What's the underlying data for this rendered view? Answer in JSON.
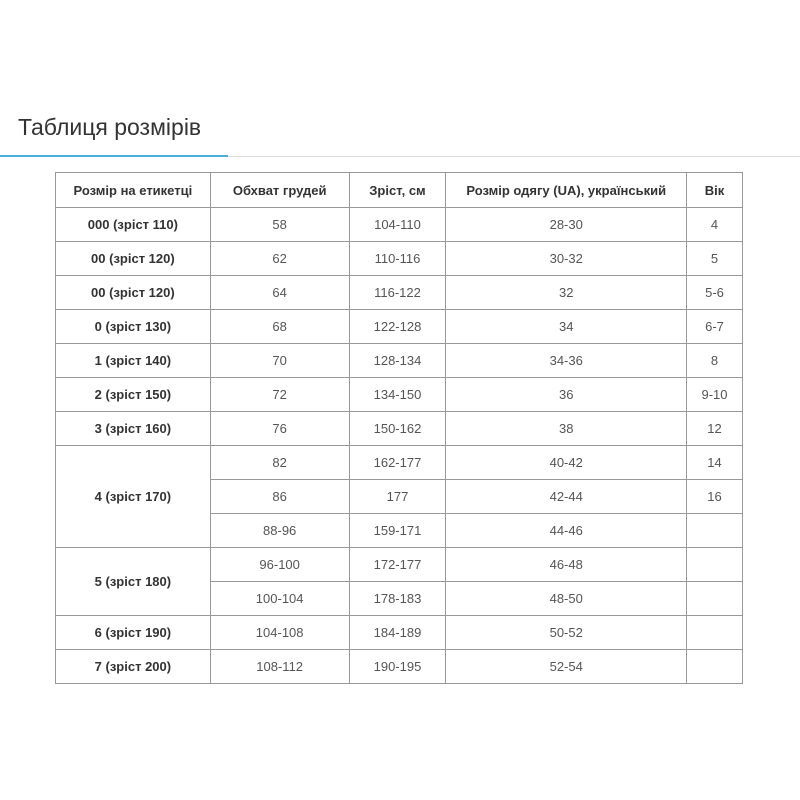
{
  "title": "Таблиця розмірів",
  "accent_color": "#4aaed6",
  "table": {
    "headers": [
      "Розмір на етикетці",
      "Обхват грудей",
      "Зріст, см",
      "Розмір одягу (UA), український",
      "Вік"
    ],
    "groups": [
      {
        "label": "000 (зріст 110)",
        "rows": [
          [
            "58",
            "104-110",
            "28-30",
            "4"
          ]
        ]
      },
      {
        "label": "00 (зріст 120)",
        "rows": [
          [
            "62",
            "110-116",
            "30-32",
            "5"
          ]
        ]
      },
      {
        "label": "00 (зріст 120)",
        "rows": [
          [
            "64",
            "116-122",
            "32",
            "5-6"
          ]
        ]
      },
      {
        "label": "0 (зріст 130)",
        "rows": [
          [
            "68",
            "122-128",
            "34",
            "6-7"
          ]
        ]
      },
      {
        "label": "1 (зріст 140)",
        "rows": [
          [
            "70",
            "128-134",
            "34-36",
            "8"
          ]
        ]
      },
      {
        "label": "2 (зріст 150)",
        "rows": [
          [
            "72",
            "134-150",
            "36",
            "9-10"
          ]
        ]
      },
      {
        "label": "3 (зріст 160)",
        "rows": [
          [
            "76",
            "150-162",
            "38",
            "12"
          ]
        ]
      },
      {
        "label": "4 (зріст 170)",
        "rows": [
          [
            "82",
            "162-177",
            "40-42",
            "14"
          ],
          [
            "86",
            "177",
            "42-44",
            "16"
          ],
          [
            "88-96",
            "159-171",
            "44-46",
            ""
          ]
        ]
      },
      {
        "label": "5 (зріст 180)",
        "rows": [
          [
            "96-100",
            "172-177",
            "46-48",
            ""
          ],
          [
            "100-104",
            "178-183",
            "48-50",
            ""
          ]
        ]
      },
      {
        "label": "6 (зріст 190)",
        "rows": [
          [
            "104-108",
            "184-189",
            "50-52",
            ""
          ]
        ]
      },
      {
        "label": "7 (зріст 200)",
        "rows": [
          [
            "108-112",
            "190-195",
            "52-54",
            ""
          ]
        ]
      }
    ]
  }
}
